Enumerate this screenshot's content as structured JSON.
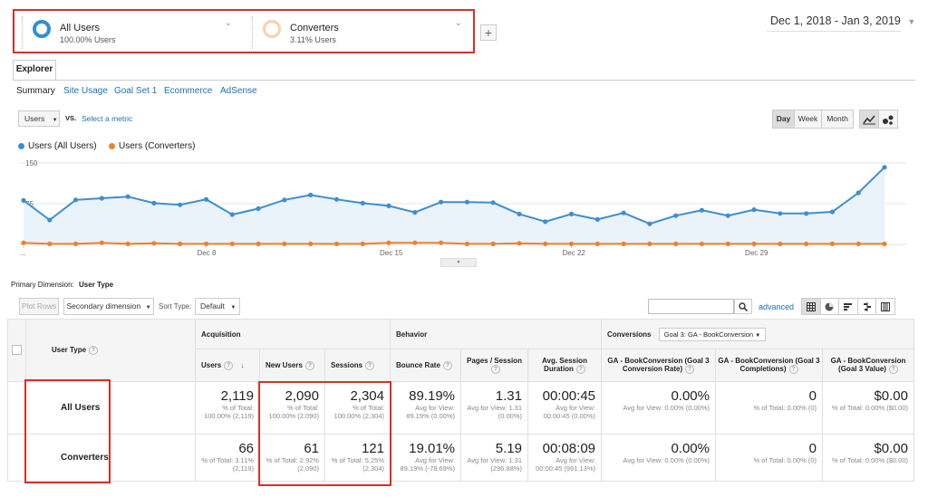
{
  "segments": [
    {
      "name": "All Users",
      "pct": "100.00% Users",
      "ring_color": "#2f8fd8"
    },
    {
      "name": "Converters",
      "pct": "3.11% Users",
      "ring_color": "#f4a25f"
    }
  ],
  "add_segment_label": "+",
  "date_range": "Dec 1, 2018 - Jan 3, 2019",
  "tab_label": "Explorer",
  "subnav": [
    "Summary",
    "Site Usage",
    "Goal Set 1",
    "Ecommerce",
    "AdSense"
  ],
  "metric_select": "Users",
  "vs_label": "VS.",
  "select_metric_link": "Select a metric",
  "granularity": [
    "Day",
    "Week",
    "Month"
  ],
  "legend": [
    {
      "label": "Users (All Users)",
      "color": "#3d8ed0"
    },
    {
      "label": "Users (Converters)",
      "color": "#e8842f"
    }
  ],
  "chart_data": {
    "type": "line",
    "yticks": [
      "150",
      "75"
    ],
    "ylim": [
      0,
      150
    ],
    "xticks": [
      "...",
      "Dec 8",
      "Dec 15",
      "Dec 22",
      "Dec 29"
    ],
    "x": [
      "Dec 1",
      "Dec 2",
      "Dec 3",
      "Dec 4",
      "Dec 5",
      "Dec 6",
      "Dec 7",
      "Dec 8",
      "Dec 9",
      "Dec 10",
      "Dec 11",
      "Dec 12",
      "Dec 13",
      "Dec 14",
      "Dec 15",
      "Dec 16",
      "Dec 17",
      "Dec 18",
      "Dec 19",
      "Dec 20",
      "Dec 21",
      "Dec 22",
      "Dec 23",
      "Dec 24",
      "Dec 25",
      "Dec 26",
      "Dec 27",
      "Dec 28",
      "Dec 29",
      "Dec 30",
      "Dec 31",
      "Jan 1",
      "Jan 2",
      "Jan 3"
    ],
    "series": [
      {
        "name": "Users (All Users)",
        "color": "#3d8ed0",
        "values": [
          81,
          45,
          82,
          85,
          88,
          76,
          73,
          83,
          55,
          66,
          82,
          91,
          83,
          76,
          71,
          59,
          78,
          78,
          77,
          56,
          42,
          56,
          46,
          58,
          38,
          53,
          63,
          53,
          64,
          57,
          57,
          60,
          95,
          142
        ]
      },
      {
        "name": "Users (Converters)",
        "color": "#e8842f",
        "values": [
          3,
          1,
          1,
          3,
          1,
          2,
          1,
          1,
          1,
          1,
          1,
          1,
          1,
          1,
          3,
          3,
          3,
          1,
          1,
          2,
          1,
          1,
          1,
          1,
          1,
          1,
          1,
          1,
          1,
          1,
          1,
          1,
          1,
          1
        ]
      }
    ]
  },
  "primary_dimension_label": "Primary Dimension:",
  "primary_dimension_value": "User Type",
  "toolbar": {
    "plot_rows": "Plot Rows",
    "secondary_dimension": "Secondary dimension",
    "sort_type_label": "Sort Type:",
    "sort_type_value": "Default",
    "advanced": "advanced"
  },
  "table": {
    "dimension_header": "User Type",
    "groups": {
      "acquisition": "Acquisition",
      "behavior": "Behavior",
      "conversions": "Conversions",
      "goal_select": "Goal 3: GA - BookConversion"
    },
    "columns": [
      "Users",
      "New Users",
      "Sessions",
      "Bounce Rate",
      "Pages / Session",
      "Avg. Session Duration",
      "GA - BookConversion (Goal 3 Conversion Rate)",
      "GA - BookConversion (Goal 3 Completions)",
      "GA - BookConversion (Goal 3 Value)"
    ],
    "rows": [
      {
        "label": "All Users",
        "cells": [
          {
            "v": "2,119",
            "s": "% of Total: 100.00% (2,119)"
          },
          {
            "v": "2,090",
            "s": "% of Total: 100.00% (2,090)"
          },
          {
            "v": "2,304",
            "s": "% of Total: 100.00% (2,304)"
          },
          {
            "v": "89.19%",
            "s": "Avg for View: 89.19% (0.00%)"
          },
          {
            "v": "1.31",
            "s": "Avg for View: 1.31 (0.00%)"
          },
          {
            "v": "00:00:45",
            "s": "Avg for View: 00:00:45 (0.00%)"
          },
          {
            "v": "0.00%",
            "s": "Avg for View: 0.00% (0.00%)"
          },
          {
            "v": "0",
            "s": "% of Total: 0.00% (0)"
          },
          {
            "v": "$0.00",
            "s": "% of Total: 0.00% ($0.00)"
          }
        ]
      },
      {
        "label": "Converters",
        "cells": [
          {
            "v": "66",
            "s": "% of Total: 3.11% (2,119)"
          },
          {
            "v": "61",
            "s": "% of Total: 2.92% (2,090)"
          },
          {
            "v": "121",
            "s": "% of Total: 5.25% (2,304)"
          },
          {
            "v": "19.01%",
            "s": "Avg for View: 89.19% (-78.69%)"
          },
          {
            "v": "5.19",
            "s": "Avg for View: 1.31 (296.88%)"
          },
          {
            "v": "00:08:09",
            "s": "Avg for View: 00:00:45 (991.13%)"
          },
          {
            "v": "0.00%",
            "s": "Avg for View: 0.00% (0.00%)"
          },
          {
            "v": "0",
            "s": "% of Total: 0.00% (0)"
          },
          {
            "v": "$0.00",
            "s": "% of Total: 0.00% ($0.00)"
          }
        ]
      }
    ]
  }
}
